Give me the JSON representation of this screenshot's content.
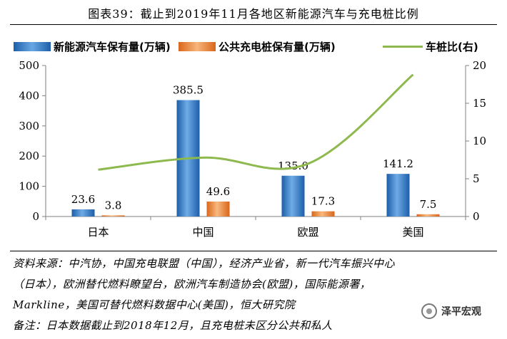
{
  "title": "图表39：截止到2019年11月各地区新能源汽车与充电桩比例",
  "legend": [
    {
      "label": "新能源汽车保有量(万辆)",
      "color": "#2e75c6"
    },
    {
      "label": "公共充电桩保有量(万辆)",
      "color": "#ed7d31"
    },
    {
      "label": "车桩比(右)",
      "color": "#8db94e"
    }
  ],
  "chart_data": {
    "type": "bar",
    "categories": [
      "日本",
      "中国",
      "欧盟",
      "美国"
    ],
    "series": [
      {
        "name": "新能源汽车保有量(万辆)",
        "axis": "left",
        "kind": "bar",
        "values": [
          23.6,
          385.5,
          135.0,
          141.2
        ],
        "labels": [
          "23.6",
          "385.5",
          "135.0",
          "141.2"
        ]
      },
      {
        "name": "公共充电桩保有量(万辆)",
        "axis": "left",
        "kind": "bar",
        "values": [
          3.8,
          49.6,
          17.3,
          7.5
        ],
        "labels": [
          "3.8",
          "49.6",
          "17.3",
          "7.5"
        ]
      },
      {
        "name": "车桩比(右)",
        "axis": "right",
        "kind": "line",
        "values": [
          6.2,
          7.8,
          7.0,
          18.8
        ]
      }
    ],
    "y_left": {
      "min": 0,
      "max": 500,
      "ticks": [
        0,
        100,
        200,
        300,
        400,
        500
      ]
    },
    "y_right": {
      "min": 0,
      "max": 20,
      "ticks": [
        0,
        5,
        10,
        15,
        20
      ]
    },
    "legend_position": "top",
    "grid": false
  },
  "notes": [
    "资料来源：中汽协，中国充电联盟（中国），经济产业省，新一代汽车振兴中心",
    "（日本），欧洲替代燃料瞭望台，欧洲汽车制造协会(欧盟)，国际能源署，",
    "Markline，美国可替代燃料数据中心(美国)，恒大研究院",
    "备注：日本数据截止到2018年12月，且充电桩未区分公共和私人"
  ],
  "watermark": "泽平宏观",
  "colors": {
    "bar1": "#2e75c6",
    "bar2": "#ed7d31",
    "line": "#8db94e",
    "axis": "#808080"
  }
}
